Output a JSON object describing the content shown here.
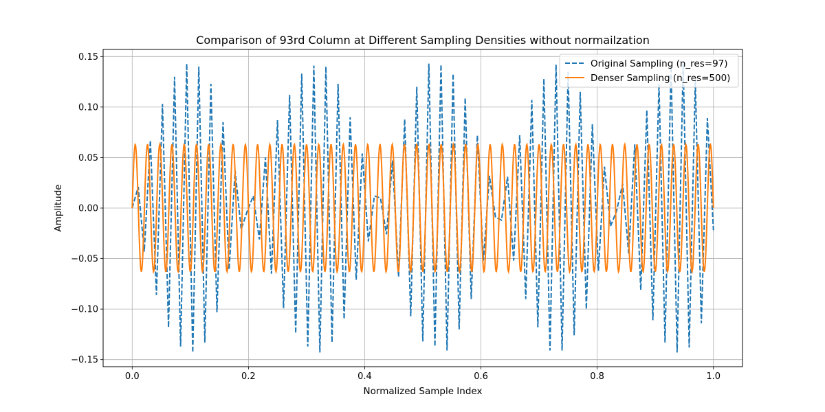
{
  "chart_data": {
    "type": "line",
    "title": "Comparison of 93rd Column at Different Sampling Densities without normailzation",
    "xlabel": "Normalized Sample Index",
    "ylabel": "Amplitude",
    "xlim": [
      -0.05,
      1.05
    ],
    "ylim": [
      -0.157,
      0.157
    ],
    "xticks": [
      "0.0",
      "0.2",
      "0.4",
      "0.6",
      "0.8",
      "1.0"
    ],
    "yticks": [
      "−0.15",
      "−0.10",
      "−0.05",
      "0.00",
      "0.05",
      "0.10",
      "0.15"
    ],
    "xtick_values": [
      0.0,
      0.2,
      0.4,
      0.6,
      0.8,
      1.0
    ],
    "ytick_values": [
      -0.15,
      -0.1,
      -0.05,
      0.0,
      0.05,
      0.1,
      0.15
    ],
    "grid": true,
    "legend_position": "top-right",
    "series": [
      {
        "name": "Original Sampling (n_res=97)",
        "color": "#1f77b4",
        "style": "dashed",
        "x": [
          0.0,
          0.0104,
          0.0208,
          0.0313,
          0.0417,
          0.0521,
          0.0625,
          0.0729,
          0.0833,
          0.0938,
          0.1042,
          0.1146,
          0.125,
          0.1354,
          0.1458,
          0.1563,
          0.1667,
          0.1771,
          0.1875,
          0.1979,
          0.2083,
          0.2188,
          0.2292,
          0.2396,
          0.25,
          0.2604,
          0.2708,
          0.2813,
          0.2917,
          0.3021,
          0.3125,
          0.3229,
          0.3333,
          0.3438,
          0.3542,
          0.3646,
          0.375,
          0.3854,
          0.3958,
          0.4063,
          0.4167,
          0.4271,
          0.4375,
          0.4479,
          0.4583,
          0.4688,
          0.4792,
          0.4896,
          0.5,
          0.5104,
          0.5208,
          0.5313,
          0.5417,
          0.5521,
          0.5625,
          0.5729,
          0.5833,
          0.5938,
          0.6042,
          0.6146,
          0.625,
          0.6354,
          0.6458,
          0.6563,
          0.6667,
          0.6771,
          0.6875,
          0.6979,
          0.7083,
          0.7188,
          0.7292,
          0.7396,
          0.75,
          0.7604,
          0.7708,
          0.7813,
          0.7917,
          0.8021,
          0.8125,
          0.8229,
          0.8333,
          0.8438,
          0.8542,
          0.8646,
          0.875,
          0.8854,
          0.8958,
          0.9063,
          0.9167,
          0.9271,
          0.9375,
          0.9479,
          0.9583,
          0.9688,
          0.9792,
          0.9896,
          1.0
        ],
        "y": [
          0.0,
          0.021,
          -0.043,
          0.067,
          -0.086,
          0.103,
          -0.118,
          0.13,
          -0.137,
          0.143,
          -0.143,
          0.14,
          -0.133,
          0.123,
          -0.103,
          0.085,
          -0.061,
          0.037,
          -0.021,
          -0.003,
          0.012,
          -0.031,
          0.05,
          -0.065,
          0.087,
          -0.099,
          0.112,
          -0.124,
          0.133,
          -0.137,
          0.141,
          -0.143,
          0.14,
          -0.133,
          0.123,
          -0.11,
          0.09,
          -0.071,
          0.054,
          -0.033,
          0.012,
          0.01,
          -0.026,
          0.047,
          -0.068,
          0.088,
          -0.107,
          0.12,
          -0.132,
          0.143,
          -0.137,
          0.142,
          -0.141,
          0.133,
          -0.12,
          0.109,
          -0.09,
          0.072,
          -0.052,
          0.032,
          -0.009,
          -0.012,
          0.031,
          -0.052,
          0.072,
          -0.09,
          0.107,
          -0.118,
          0.128,
          -0.141,
          0.142,
          -0.141,
          0.135,
          -0.126,
          0.115,
          -0.1,
          0.083,
          -0.062,
          0.041,
          -0.018,
          -0.003,
          0.024,
          -0.045,
          0.063,
          -0.081,
          0.097,
          -0.111,
          0.123,
          -0.133,
          0.14,
          -0.143,
          0.144,
          -0.138,
          0.126,
          -0.114,
          0.089,
          -0.022
        ]
      },
      {
        "name": "Denser Sampling (n_res=500)",
        "color": "#ff7f0e",
        "style": "solid",
        "function": "sine",
        "amplitude": 0.063,
        "cycles": 47.5
      }
    ]
  }
}
